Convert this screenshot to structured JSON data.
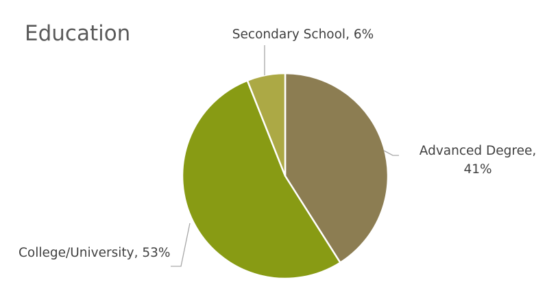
{
  "chart_data": {
    "type": "pie",
    "title": "Education",
    "slices": [
      {
        "name": "Advanced Degree",
        "label_lines": [
          "Advanced Degree,",
          "41%"
        ],
        "value": 41,
        "color": "#8c7d52"
      },
      {
        "name": "College/University",
        "label_lines": [
          "College/University, 53%"
        ],
        "value": 53,
        "color": "#889b14"
      },
      {
        "name": "Secondary School",
        "label_lines": [
          "Secondary School, 6%"
        ],
        "value": 6,
        "color": "#aca945"
      }
    ],
    "start_angle_deg": 0,
    "direction": "clockwise",
    "legend": "none"
  }
}
